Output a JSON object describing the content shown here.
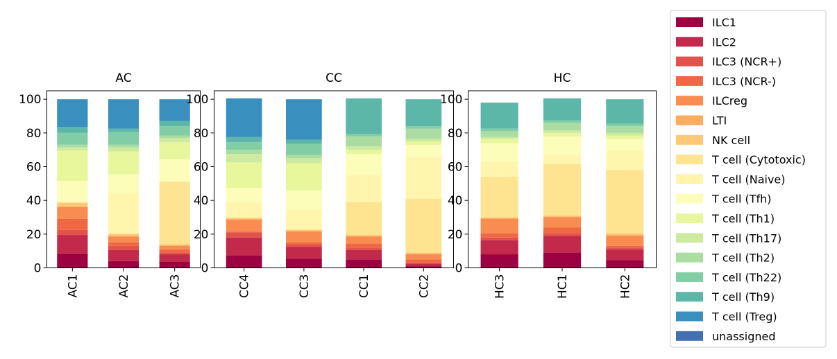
{
  "chart_data": {
    "type": "bar",
    "stacked": true,
    "ylim": [
      0,
      105
    ],
    "yticks": [
      0,
      20,
      40,
      60,
      80,
      100
    ],
    "legend_position": "right",
    "series": [
      {
        "name": "ILC1",
        "color": "#9e0142"
      },
      {
        "name": "ILC2",
        "color": "#c2294a"
      },
      {
        "name": "ILC3 (NCR+)",
        "color": "#e1524a"
      },
      {
        "name": "ILC3 (NCR-)",
        "color": "#f06744"
      },
      {
        "name": "ILCreg",
        "color": "#f88c51"
      },
      {
        "name": "LTI",
        "color": "#fdad60"
      },
      {
        "name": "NK cell",
        "color": "#fdc877"
      },
      {
        "name": "T cell (Cytotoxic)",
        "color": "#fee391"
      },
      {
        "name": "T cell (Naive)",
        "color": "#fff5ad"
      },
      {
        "name": "T cell (Tfh)",
        "color": "#fbfdb9"
      },
      {
        "name": "T cell (Th1)",
        "color": "#e8f69c"
      },
      {
        "name": "T cell (Th17)",
        "color": "#cdeaa0"
      },
      {
        "name": "T cell (Th2)",
        "color": "#abdca2"
      },
      {
        "name": "T cell (Th22)",
        "color": "#81cda5"
      },
      {
        "name": "T cell (Th9)",
        "color": "#5db7a9"
      },
      {
        "name": "T cell (Treg)",
        "color": "#3990be"
      },
      {
        "name": "unassigned",
        "color": "#4470b1"
      }
    ],
    "panels": [
      {
        "title": "AC",
        "categories": [
          "AC1",
          "AC2",
          "AC3"
        ],
        "values": [
          [
            8.5,
            11.0,
            3.0,
            6.5,
            7.0,
            0.5,
            2.0,
            0.5,
            0.5,
            12.0,
            18.0,
            2.0,
            1.5,
            7.0,
            3.5,
            16.5,
            0
          ],
          [
            4.0,
            6.5,
            2.5,
            2.0,
            3.5,
            0.5,
            1.0,
            0.5,
            24.0,
            11.0,
            13.5,
            2.5,
            1.5,
            7.5,
            2.0,
            17.5,
            0
          ],
          [
            3.5,
            4.5,
            1.0,
            2.0,
            2.0,
            0.5,
            0.5,
            37.0,
            0.5,
            13.0,
            10.0,
            2.5,
            1.5,
            5.5,
            3.0,
            13.0,
            0
          ]
        ]
      },
      {
        "title": "CC",
        "categories": [
          "CC4",
          "CC3",
          "CC1",
          "CC2"
        ],
        "values": [
          [
            7.5,
            10.5,
            3.0,
            0.5,
            7.0,
            0.5,
            0.5,
            0.5,
            9.0,
            8.5,
            15.0,
            5.0,
            2.5,
            4.5,
            3.0,
            23.0,
            0
          ],
          [
            5.5,
            7.0,
            1.5,
            1.0,
            6.5,
            0.5,
            0.5,
            0.5,
            11.5,
            11.5,
            16.0,
            3.0,
            2.0,
            6.5,
            2.5,
            24.0,
            0
          ],
          [
            5.0,
            5.5,
            1.5,
            2.5,
            4.0,
            0.5,
            0.5,
            19.5,
            16.0,
            12.5,
            2.5,
            2.0,
            6.0,
            1.5,
            21.0,
            0,
            0
          ],
          [
            1.0,
            1.5,
            0.5,
            2.0,
            3.0,
            0.5,
            0.5,
            32.0,
            24.5,
            7.5,
            2.0,
            1.5,
            6.0,
            1.5,
            16.0,
            0,
            0
          ]
        ]
      },
      {
        "title": "HC",
        "categories": [
          "HC3",
          "HC1",
          "HC2"
        ],
        "values": [
          [
            8.0,
            8.5,
            1.5,
            2.5,
            8.5,
            0.5,
            0.5,
            24.0,
            9.0,
            11.0,
            2.5,
            1.0,
            3.5,
            1.5,
            15.5,
            0,
            0
          ],
          [
            9.0,
            10.0,
            1.5,
            3.5,
            6.0,
            0.5,
            0.5,
            30.5,
            5.5,
            11.0,
            2.0,
            1.5,
            4.5,
            1.5,
            13.0,
            0,
            0
          ],
          [
            4.5,
            6.5,
            1.0,
            1.0,
            6.0,
            0.5,
            1.0,
            37.5,
            11.5,
            7.0,
            2.0,
            1.5,
            4.0,
            1.5,
            14.5,
            0,
            0
          ]
        ]
      }
    ]
  }
}
